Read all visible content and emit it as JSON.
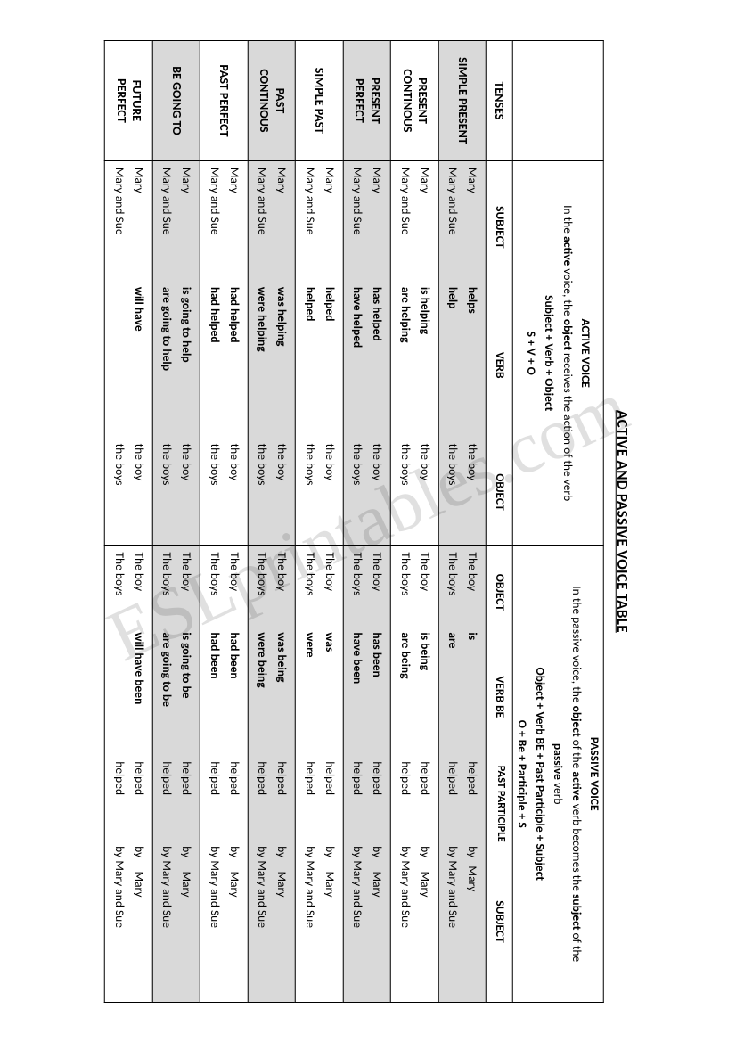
{
  "title": "ACTIVE AND PASSIVE VOICE TABLE",
  "watermark": "ESLprintables.com",
  "activeHeader": {
    "h1": "ACTIVE VOICE",
    "desc1": "In the ",
    "desc2": "active",
    "desc3": " voice, the ",
    "desc4": "object",
    "desc5": " receives the action of the verb",
    "formula1": "Subject + Verb + Object",
    "formula2": "S + V + O"
  },
  "passiveHeader": {
    "h1": "PASSIVE VOICE",
    "desc1": "In the passive voice, the ",
    "desc2": "object",
    "desc3": " of the ",
    "desc4": "active",
    "desc5": " verb becomes the ",
    "desc6": "subject",
    "desc7": " of the",
    "desc8": "passive",
    "desc9": " verb",
    "formula1": "Object + Verb BE + Past Participle + Subject",
    "formula2": "O + Be + Participle + S"
  },
  "cols": {
    "tenses": "TENSES",
    "subject": "SUBJECT",
    "verb": "VERB",
    "object": "OBJECT",
    "pobject": "OBJECT",
    "verbbe": "VERB BE",
    "pp": "PAST PARTICIPLE",
    "psubject": "SUBJECT"
  },
  "tenses": [
    {
      "name": "SIMPLE PRESENT",
      "gray": true,
      "active": [
        {
          "s": "Mary",
          "v": "helps",
          "o": "the boy"
        },
        {
          "s": "Mary and Sue",
          "v": "help",
          "o": "the boys"
        }
      ],
      "passive": [
        {
          "o": "The boy",
          "be": "is",
          "pp": "helped",
          "s": "by   Mary"
        },
        {
          "o": "The boys",
          "be": "are",
          "pp": "helped",
          "s": "by Mary and Sue"
        }
      ]
    },
    {
      "name_l1": "PRESENT",
      "name_l2": "CONTINOUS",
      "gray": false,
      "active": [
        {
          "s": "Mary",
          "v": "is helping",
          "o": "the boy"
        },
        {
          "s": "Mary and Sue",
          "v": "are helping",
          "o": "the boys"
        }
      ],
      "passive": [
        {
          "o": "The boy",
          "be": "is being",
          "pp": "helped",
          "s": "by     Mary"
        },
        {
          "o": "The boys",
          "be": "are being",
          "pp": "helped",
          "s": "by Mary and Sue"
        }
      ]
    },
    {
      "name_l1": "PRESENT",
      "name_l2": "PERFECT",
      "gray": true,
      "active": [
        {
          "s": "Mary",
          "v": "has helped",
          "o": "the boy"
        },
        {
          "s": "Mary and Sue",
          "v": "have helped",
          "o": "the boys"
        }
      ],
      "passive": [
        {
          "o": "The boy",
          "be": "has been",
          "pp": "helped",
          "s": "by     Mary"
        },
        {
          "o": "The boys",
          "be": "have been",
          "pp": "helped",
          "s": "by Mary and Sue"
        }
      ]
    },
    {
      "name": "SIMPLE PAST",
      "gray": false,
      "active": [
        {
          "s": "Mary",
          "v": "helped",
          "o": "the boy"
        },
        {
          "s": "Mary and Sue",
          "v": "helped",
          "o": "the boys"
        }
      ],
      "passive": [
        {
          "o": "The boy",
          "be": "was",
          "pp": "helped",
          "s": "by     Mary"
        },
        {
          "o": "The boys",
          "be": "were",
          "pp": "helped",
          "s": "by Mary and Sue"
        }
      ]
    },
    {
      "name_l1": "PAST",
      "name_l2": "CONTINOUS",
      "gray": true,
      "active": [
        {
          "s": "Mary",
          "v": "was helping",
          "o": "the boy"
        },
        {
          "s": "Mary and Sue",
          "v": "were helping",
          "o": "the boys"
        }
      ],
      "passive": [
        {
          "o": "The boy",
          "be": "was being",
          "pp": "helped",
          "s": "by     Mary"
        },
        {
          "o": "The boys",
          "be": "were being",
          "pp": "helped",
          "s": "by Mary and Sue"
        }
      ]
    },
    {
      "name": "PAST PERFECT",
      "gray": false,
      "active": [
        {
          "s": "Mary",
          "v": "had helped",
          "o": "the boy"
        },
        {
          "s": "Mary and Sue",
          "v": "had helped",
          "o": "the boys"
        }
      ],
      "passive": [
        {
          "o": "The boy",
          "be": "had been",
          "pp": "helped",
          "s": "by     Mary"
        },
        {
          "o": "The boys",
          "be": "had been",
          "pp": "helped",
          "s": "by Mary and Sue"
        }
      ]
    },
    {
      "name": "BE GOING TO",
      "gray": true,
      "active": [
        {
          "s": "Mary",
          "v": "is going to help",
          "o": "the boy"
        },
        {
          "s": "Mary and Sue",
          "v": "are going to help",
          "o": "the boys"
        }
      ],
      "passive": [
        {
          "o": "The boy",
          "be": "is going to be",
          "pp": "helped",
          "s": "by     Mary"
        },
        {
          "o": "The boys",
          "be": "are going to be",
          "pp": "helped",
          "s": "by Mary and Sue"
        }
      ]
    },
    {
      "name_l1": "FUTURE",
      "name_l2": "PERFECT",
      "gray": false,
      "active": [
        {
          "s": "Mary",
          "v": "will have",
          "o": "the boy"
        },
        {
          "s": "Mary and Sue",
          "v": "",
          "o": "the boys"
        }
      ],
      "passive": [
        {
          "o": "The boy",
          "be": "will have been",
          "pp": "helped",
          "s": "by     Mary"
        },
        {
          "o": "The boys",
          "be": "",
          "pp": "helped",
          "s": "by Mary and Sue"
        }
      ]
    }
  ],
  "colwidths": {
    "tense": 12.5,
    "active": 40,
    "passive": 47.5
  }
}
